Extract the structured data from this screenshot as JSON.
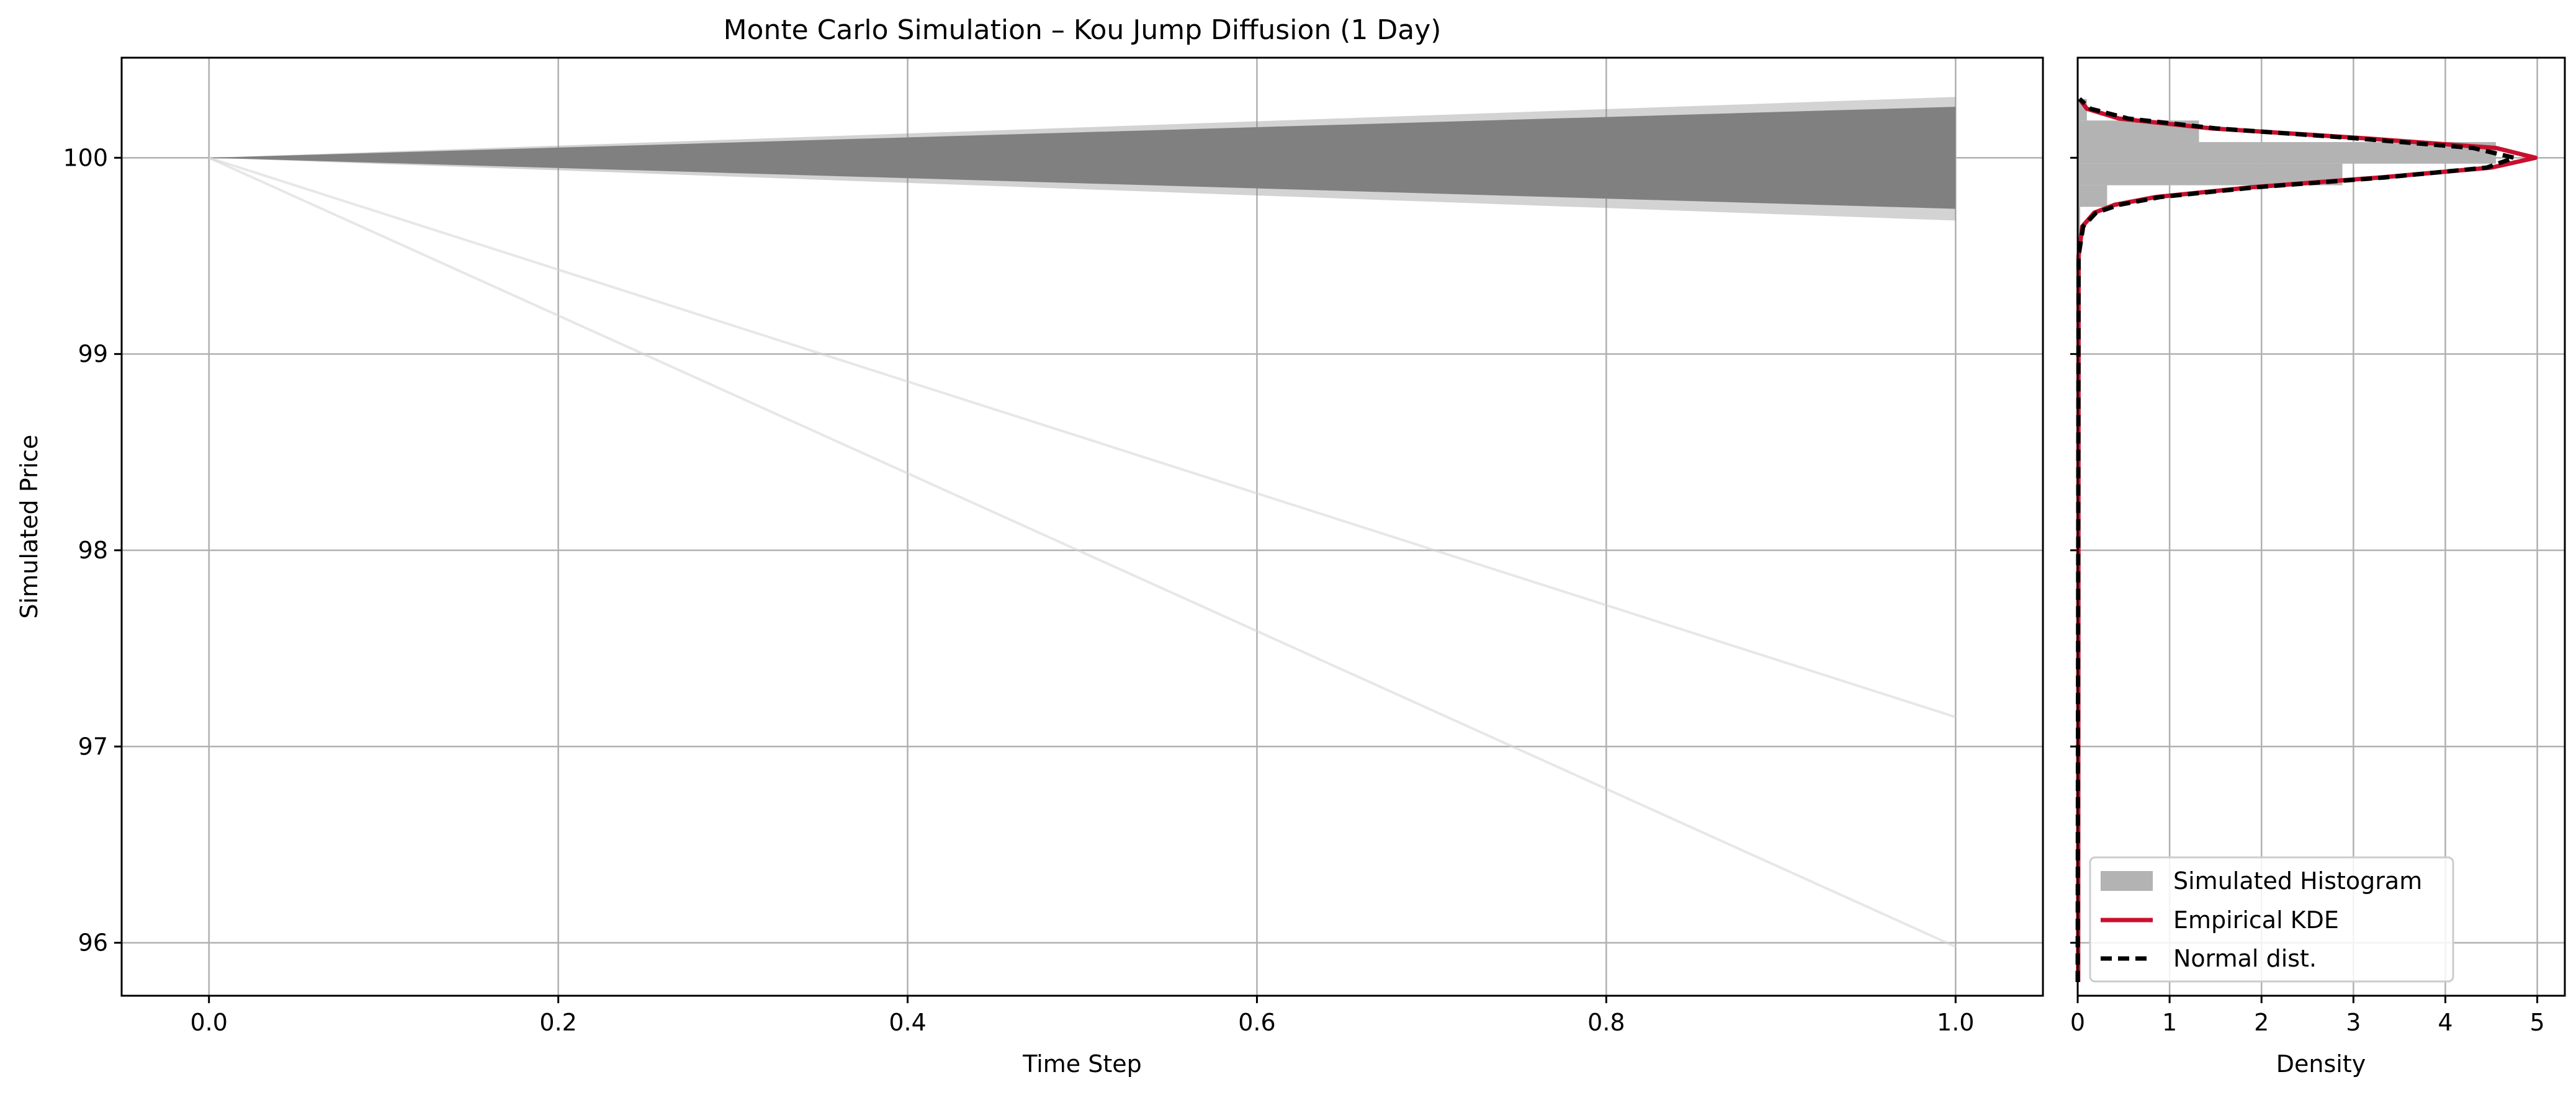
{
  "chart_data": [
    {
      "type": "line",
      "title": "Monte Carlo Simulation – Kou Jump Diffusion (1 Day)",
      "xlabel": "Time Step",
      "ylabel": "Simulated Price",
      "xlim": [
        -0.05,
        1.05
      ],
      "ylim": [
        95.73,
        100.51
      ],
      "xticks": [
        0.0,
        0.2,
        0.4,
        0.6,
        0.8,
        1.0
      ],
      "xtick_labels": [
        "0.0",
        "0.2",
        "0.4",
        "0.6",
        "0.8",
        "1.0"
      ],
      "yticks": [
        96,
        97,
        98,
        99,
        100
      ],
      "ytick_labels": [
        "96",
        "97",
        "98",
        "99",
        "100"
      ],
      "grid": true,
      "start_price": 100.0,
      "diffusion_paths": {
        "description_of_band": "dense fan of simulated paths",
        "end_range_dense": [
          99.74,
          100.26
        ],
        "end_range_faint": [
          99.68,
          100.31
        ],
        "color": "#808080"
      },
      "jump_paths": [
        {
          "x": [
            0.0,
            1.0
          ],
          "y": [
            100.0,
            97.15
          ]
        },
        {
          "x": [
            0.0,
            1.0
          ],
          "y": [
            100.0,
            95.98
          ]
        }
      ]
    },
    {
      "type": "bar",
      "orientation": "horizontal",
      "xlabel": "Density",
      "ylabel": "",
      "xlim": [
        0,
        5.3
      ],
      "ylim": [
        95.73,
        100.51
      ],
      "xticks": [
        0,
        1,
        2,
        3,
        4,
        5
      ],
      "xtick_labels": [
        "0",
        "1",
        "2",
        "3",
        "4",
        "5"
      ],
      "grid": true,
      "legend_position": "lower-right",
      "legend": [
        "Simulated Histogram",
        "Empirical KDE",
        "Normal dist."
      ],
      "histogram": {
        "name": "Simulated Histogram",
        "color": "#b3b3b3",
        "bin_edges": [
          95.98,
          99.75,
          99.86,
          99.97,
          100.08,
          100.19,
          100.3
        ],
        "density": [
          0.0,
          0.32,
          2.88,
          4.55,
          1.32,
          0.1
        ]
      },
      "series": [
        {
          "name": "Empirical KDE",
          "color": "#c8102e",
          "y": [
            95.8,
            99.5,
            99.65,
            99.72,
            99.76,
            99.8,
            99.85,
            99.9,
            99.95,
            100.0,
            100.05,
            100.1,
            100.15,
            100.2,
            100.25,
            100.3
          ],
          "x": [
            0.005,
            0.01,
            0.05,
            0.18,
            0.4,
            0.85,
            1.9,
            3.3,
            4.5,
            4.98,
            4.55,
            3.1,
            1.45,
            0.45,
            0.1,
            0.02
          ]
        },
        {
          "name": "Normal dist.",
          "color": "#000000",
          "y": [
            95.8,
            99.5,
            99.65,
            99.72,
            99.76,
            99.8,
            99.85,
            99.9,
            99.95,
            100.0,
            100.05,
            100.1,
            100.15,
            100.2,
            100.25,
            100.3
          ],
          "x": [
            0.0,
            0.01,
            0.06,
            0.2,
            0.45,
            0.9,
            1.95,
            3.35,
            4.45,
            4.75,
            4.3,
            3.0,
            1.5,
            0.55,
            0.14,
            0.02
          ]
        }
      ]
    }
  ]
}
